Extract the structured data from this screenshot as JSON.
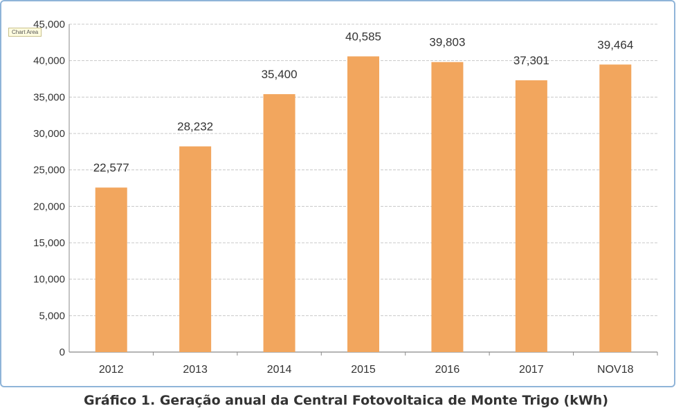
{
  "tooltip": "Chart Area",
  "caption": "Gráfico 1. Geração anual da Central Fotovoltaica de Monte Trigo (kWh)",
  "colors": {
    "bar": "#f2a65e",
    "grid": "#c8c8c8",
    "axis": "#888888",
    "frame": "#8fb4d8"
  },
  "chart_data": {
    "type": "bar",
    "title": "",
    "xlabel": "",
    "ylabel": "",
    "categories": [
      "2012",
      "2013",
      "2014",
      "2015",
      "2016",
      "2017",
      "NOV18"
    ],
    "values": [
      22577,
      28232,
      35400,
      40585,
      39803,
      37301,
      39464
    ],
    "data_labels": [
      "22,577",
      "28,232",
      "35,400",
      "40,585",
      "39,803",
      "37,301",
      "39,464"
    ],
    "ylim": [
      0,
      45000
    ],
    "ytick_values": [
      0,
      5000,
      10000,
      15000,
      20000,
      25000,
      30000,
      35000,
      40000,
      45000
    ],
    "ytick_labels": [
      "0",
      "5,000",
      "10,000",
      "15,000",
      "20,000",
      "25,000",
      "30,000",
      "35,000",
      "40,000",
      "45,000"
    ],
    "grid": true,
    "legend": "none"
  }
}
